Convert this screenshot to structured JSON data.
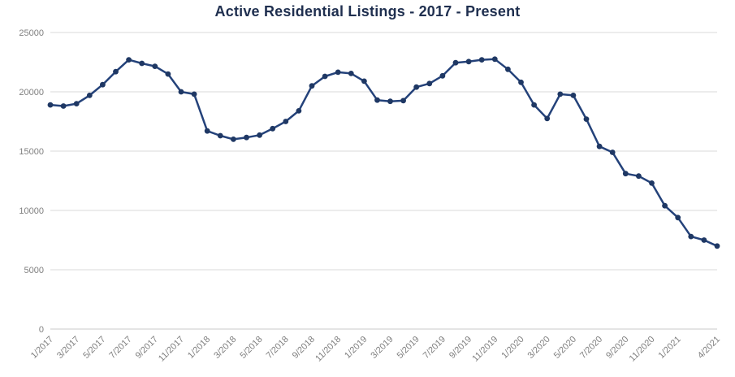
{
  "colors": {
    "line": "#24427a",
    "marker": "#1f3864",
    "grid": "#d9d9d9",
    "axis_line": "#c9c9c9",
    "tick_label": "#7f7f7f",
    "title": "#1f2f4f",
    "background": "#ffffff"
  },
  "chart_data": {
    "type": "line",
    "title": "Active Residential Listings - 2017 - Present",
    "xlabel": "",
    "ylabel": "",
    "grid": true,
    "legend": "none",
    "ylim": [
      0,
      25000
    ],
    "y_ticks": [
      0,
      5000,
      10000,
      15000,
      20000,
      25000
    ],
    "x": [
      "1/2017",
      "2/2017",
      "3/2017",
      "4/2017",
      "5/2017",
      "6/2017",
      "7/2017",
      "8/2017",
      "9/2017",
      "10/2017",
      "11/2017",
      "12/2017",
      "1/2018",
      "2/2018",
      "3/2018",
      "4/2018",
      "5/2018",
      "6/2018",
      "7/2018",
      "8/2018",
      "9/2018",
      "10/2018",
      "11/2018",
      "12/2018",
      "1/2019",
      "2/2019",
      "3/2019",
      "4/2019",
      "5/2019",
      "6/2019",
      "7/2019",
      "8/2019",
      "9/2019",
      "10/2019",
      "11/2019",
      "12/2019",
      "1/2020",
      "2/2020",
      "3/2020",
      "4/2020",
      "5/2020",
      "6/2020",
      "7/2020",
      "8/2020",
      "9/2020",
      "10/2020",
      "11/2020",
      "12/2020",
      "1/2021",
      "2/2021",
      "3/2021",
      "4/2021"
    ],
    "values": [
      18900,
      18800,
      19000,
      19700,
      20600,
      21700,
      22700,
      22400,
      22150,
      21500,
      20000,
      19800,
      16700,
      16300,
      16000,
      16150,
      16350,
      16900,
      17500,
      18400,
      20500,
      21300,
      21650,
      21550,
      20900,
      19300,
      19200,
      19250,
      20400,
      20700,
      21350,
      22450,
      22550,
      22700,
      22750,
      21900,
      20800,
      18900,
      17750,
      19800,
      19700,
      17700,
      15400,
      14900,
      13100,
      12900,
      12300,
      10400,
      9400,
      7800,
      7500,
      7000
    ],
    "x_tick_indices": [
      0,
      2,
      4,
      6,
      8,
      10,
      12,
      14,
      16,
      18,
      20,
      22,
      24,
      26,
      28,
      30,
      32,
      34,
      36,
      38,
      40,
      42,
      44,
      46,
      48,
      51
    ]
  }
}
